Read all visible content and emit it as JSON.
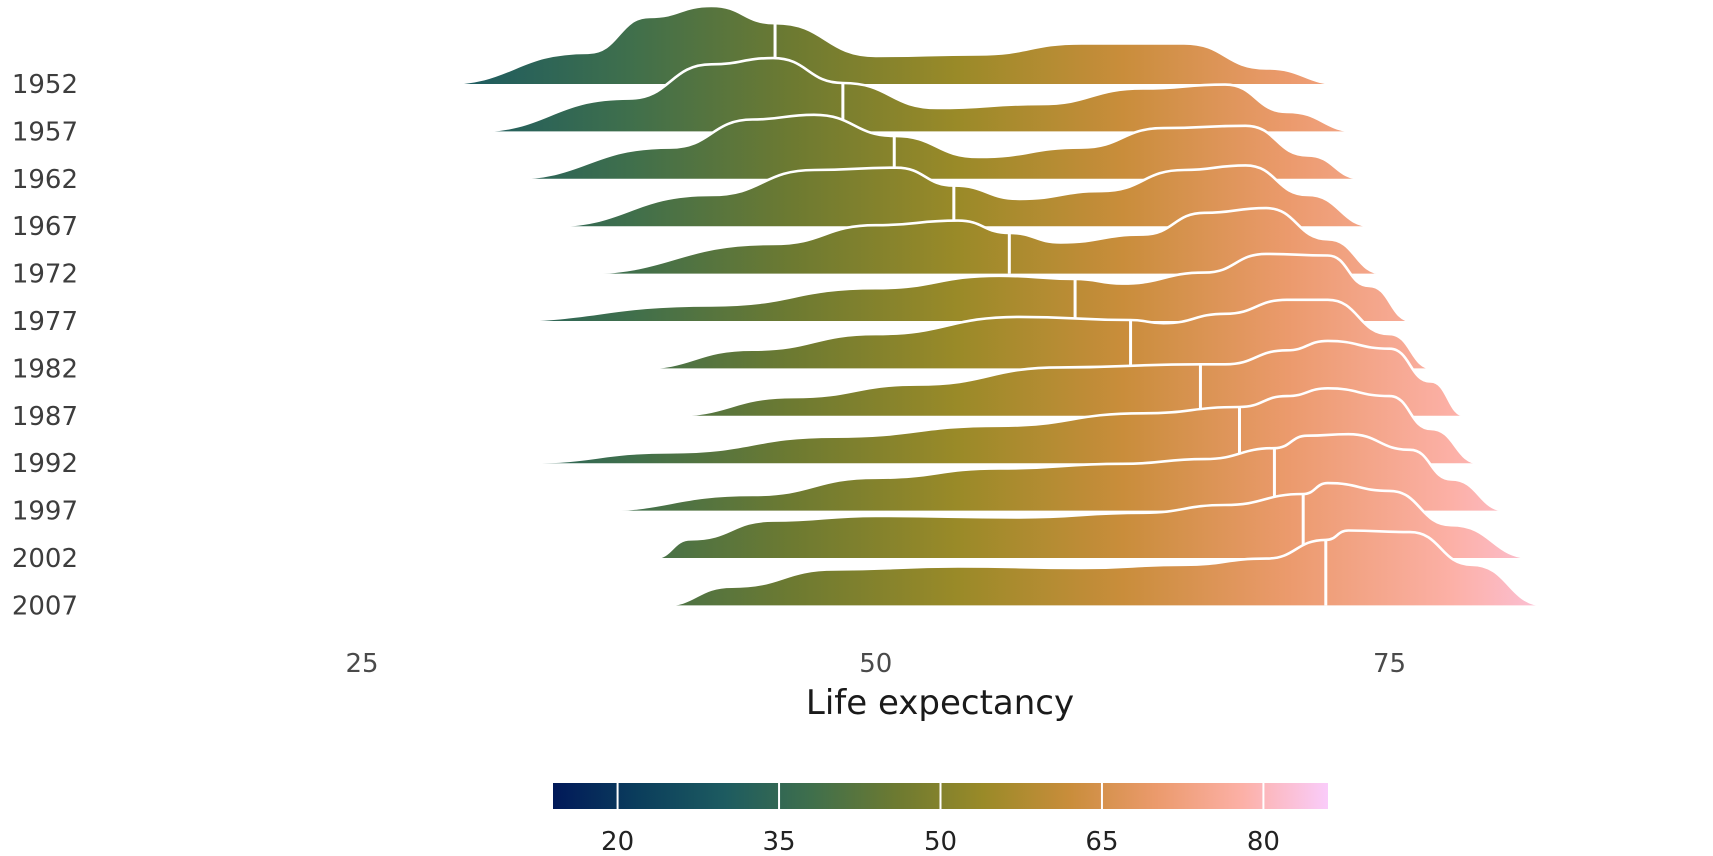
{
  "chart_data": {
    "type": "ridgeline",
    "title": "",
    "xlabel": "Life expectancy",
    "ylabel": "",
    "xlim": [
      15,
      85
    ],
    "x_ticks": [
      25,
      50,
      75
    ],
    "categories": [
      "1952",
      "1957",
      "1962",
      "1967",
      "1972",
      "1977",
      "1982",
      "1987",
      "1992",
      "1997",
      "2002",
      "2007"
    ],
    "medians": [
      45.1,
      48.4,
      50.9,
      53.8,
      56.5,
      59.7,
      62.4,
      65.8,
      67.7,
      69.4,
      70.8,
      71.9
    ],
    "ranges": [
      [
        28.8,
        72.7
      ],
      [
        30.3,
        73.5
      ],
      [
        32.0,
        73.7
      ],
      [
        34.0,
        74.2
      ],
      [
        35.4,
        74.7
      ],
      [
        31.2,
        76.1
      ],
      [
        38.4,
        77.1
      ],
      [
        39.9,
        78.7
      ],
      [
        23.6,
        79.4
      ],
      [
        36.1,
        80.7
      ],
      [
        39.2,
        82.0
      ],
      [
        39.6,
        82.6
      ]
    ],
    "ridges": [
      {
        "x": [
          28.8,
          36,
          39,
          42,
          45.1,
          50,
          55,
          60,
          65,
          69,
          72.7
        ],
        "density": [
          0,
          0.4,
          0.86,
          1.0,
          0.78,
          0.36,
          0.38,
          0.52,
          0.52,
          0.2,
          0
        ]
      },
      {
        "x": [
          30.3,
          38,
          42,
          45,
          48.4,
          53,
          58,
          63,
          67,
          70,
          73.5
        ],
        "density": [
          0,
          0.42,
          0.86,
          0.94,
          0.62,
          0.3,
          0.35,
          0.55,
          0.6,
          0.25,
          0
        ]
      },
      {
        "x": [
          32.0,
          40,
          44,
          47,
          50.9,
          55,
          60,
          64,
          68,
          71,
          73.7
        ],
        "density": [
          0,
          0.4,
          0.76,
          0.82,
          0.55,
          0.28,
          0.4,
          0.65,
          0.68,
          0.3,
          0
        ]
      },
      {
        "x": [
          34.0,
          42,
          47,
          51,
          53.8,
          57,
          61,
          65,
          68,
          71,
          74.2
        ],
        "density": [
          0,
          0.4,
          0.72,
          0.75,
          0.52,
          0.35,
          0.45,
          0.72,
          0.78,
          0.4,
          0
        ]
      },
      {
        "x": [
          35.4,
          45,
          50,
          54,
          56.5,
          59,
          63,
          66,
          69,
          72,
          74.7
        ],
        "density": [
          0,
          0.38,
          0.62,
          0.68,
          0.52,
          0.4,
          0.5,
          0.78,
          0.84,
          0.44,
          0
        ]
      },
      {
        "x": [
          31.2,
          42,
          50,
          56,
          59.7,
          62,
          66,
          69,
          72,
          74,
          76.1
        ],
        "density": [
          0,
          0.2,
          0.42,
          0.58,
          0.54,
          0.48,
          0.62,
          0.86,
          0.84,
          0.45,
          0
        ]
      },
      {
        "x": [
          38.4,
          44,
          50,
          57,
          62.4,
          64,
          67,
          70,
          72,
          75,
          77.1
        ],
        "density": [
          0,
          0.24,
          0.44,
          0.66,
          0.62,
          0.58,
          0.7,
          0.88,
          0.88,
          0.44,
          0
        ]
      },
      {
        "x": [
          39.9,
          46,
          52,
          59,
          65.8,
          67,
          70,
          72,
          75,
          77,
          78.7
        ],
        "density": [
          0,
          0.24,
          0.4,
          0.62,
          0.66,
          0.66,
          0.84,
          0.96,
          0.86,
          0.44,
          0
        ]
      },
      {
        "x": [
          23.6,
          33,
          40,
          48,
          56,
          63,
          67.7,
          70,
          72,
          75,
          77,
          79.4
        ],
        "density": [
          0,
          0.01,
          0.14,
          0.34,
          0.48,
          0.64,
          0.72,
          0.86,
          0.96,
          0.86,
          0.44,
          0
        ]
      },
      {
        "x": [
          36.1,
          44,
          50,
          56,
          62,
          66,
          69.4,
          71,
          73,
          76,
          78,
          80.7
        ],
        "density": [
          0,
          0.2,
          0.42,
          0.54,
          0.6,
          0.66,
          0.8,
          0.96,
          0.98,
          0.78,
          0.4,
          0
        ]
      },
      {
        "x": [
          39.2,
          41,
          45,
          50,
          57,
          63,
          67,
          70.8,
          72,
          75,
          78,
          82.0
        ],
        "density": [
          0,
          0.24,
          0.48,
          0.54,
          0.52,
          0.58,
          0.68,
          0.82,
          0.96,
          0.86,
          0.42,
          0
        ]
      },
      {
        "x": [
          39.6,
          43,
          48,
          54,
          60,
          65,
          69,
          71.9,
          73,
          76,
          79,
          82.6
        ],
        "density": [
          0,
          0.24,
          0.46,
          0.5,
          0.48,
          0.52,
          0.6,
          0.84,
          0.96,
          0.94,
          0.52,
          0
        ]
      }
    ],
    "colorbar": {
      "range": [
        14,
        86
      ],
      "ticks": [
        20,
        35,
        50,
        65,
        80
      ],
      "colors": [
        "#011959",
        "#0b3e5c",
        "#1d5b60",
        "#3f6f4c",
        "#6d7a31",
        "#9a8a28",
        "#c98d3b",
        "#eb9a6c",
        "#fcb0a6",
        "#faccfa"
      ]
    }
  }
}
